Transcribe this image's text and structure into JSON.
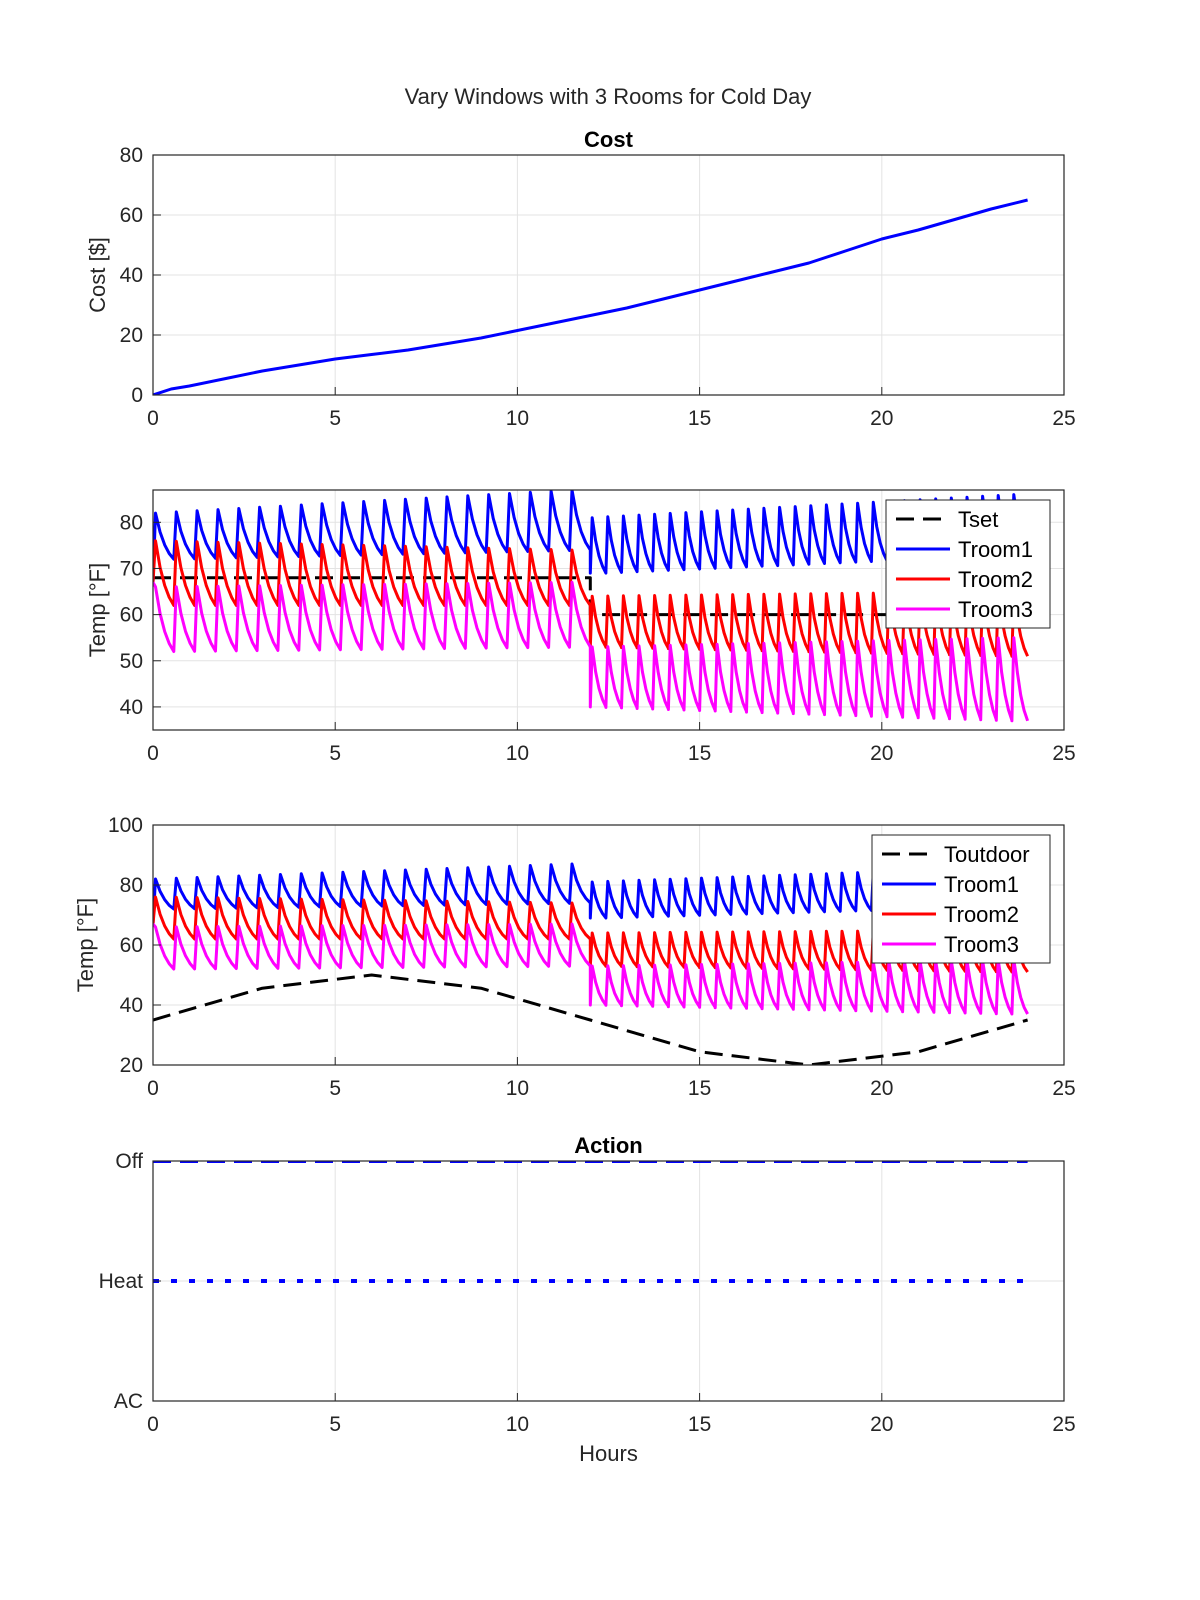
{
  "figure": {
    "suptitle": "Vary Windows with 3 Rooms for Cold Day",
    "colors": {
      "Tset": "#000000",
      "Toutdoor": "#000000",
      "Troom1": "#0000ff",
      "Troom2": "#ff0000",
      "Troom3": "#ff00ff",
      "cost": "#0000ff",
      "action": "#0000ff"
    }
  },
  "chart_data": [
    {
      "type": "line",
      "title": "Cost",
      "xlabel": "",
      "ylabel": "Cost [$]",
      "xlim": [
        0,
        25
      ],
      "ylim": [
        0,
        80
      ],
      "xticks": [
        0,
        5,
        10,
        15,
        20,
        25
      ],
      "yticks": [
        0,
        20,
        40,
        60,
        80
      ],
      "grid": true,
      "legend": null,
      "series": [
        {
          "key": "cost",
          "style": "solid",
          "x": [
            0,
            0.5,
            1,
            2,
            3,
            4,
            5,
            6,
            7,
            8,
            9,
            10,
            11,
            12,
            13,
            14,
            15,
            16,
            17,
            18,
            19,
            20,
            21,
            22,
            23,
            24
          ],
          "y": [
            0,
            2,
            3,
            5.5,
            8,
            10,
            12,
            13.5,
            15,
            17,
            19,
            21.5,
            24,
            26.5,
            29,
            32,
            35,
            38,
            41,
            44,
            48,
            52,
            55,
            58.5,
            62,
            65
          ]
        }
      ]
    },
    {
      "type": "line",
      "title": "",
      "xlabel": "",
      "ylabel": "Temp [°F]",
      "xlim": [
        0,
        25
      ],
      "ylim": [
        35,
        87
      ],
      "xticks": [
        0,
        5,
        10,
        15,
        20,
        25
      ],
      "yticks": [
        40,
        50,
        60,
        70,
        80
      ],
      "grid": true,
      "legend": {
        "placement": "top-right",
        "entries": [
          "Tset",
          "Troom1",
          "Troom2",
          "Troom3"
        ]
      },
      "series": [
        {
          "name": "Tset",
          "style": "dashed",
          "x": [
            0,
            12,
            12,
            24
          ],
          "y": [
            68,
            68,
            60,
            60
          ]
        },
        {
          "name": "Troom1",
          "style": "sawtooth",
          "x": [
            0,
            12,
            12,
            24
          ],
          "lo": [
            72,
            74,
            69,
            73
          ],
          "hi": [
            82,
            87,
            81,
            86
          ],
          "teeth": [
            21,
            28
          ]
        },
        {
          "name": "Troom2",
          "style": "sawtooth",
          "x": [
            0,
            12,
            12,
            24
          ],
          "lo": [
            62,
            62,
            53,
            51
          ],
          "hi": [
            76,
            74,
            64,
            65
          ],
          "teeth": [
            21,
            28
          ]
        },
        {
          "name": "Troom3",
          "style": "sawtooth",
          "x": [
            0,
            12,
            12,
            24
          ],
          "lo": [
            52,
            53,
            40,
            37
          ],
          "hi": [
            66,
            67,
            53,
            55
          ],
          "teeth": [
            21,
            28
          ]
        }
      ]
    },
    {
      "type": "line",
      "title": "",
      "xlabel": "",
      "ylabel": "Temp [°F]",
      "xlim": [
        0,
        25
      ],
      "ylim": [
        20,
        100
      ],
      "xticks": [
        0,
        5,
        10,
        15,
        20,
        25
      ],
      "yticks": [
        20,
        40,
        60,
        80,
        100
      ],
      "grid": true,
      "legend": {
        "placement": "top-right",
        "entries": [
          "Toutdoor",
          "Troom1",
          "Troom2",
          "Troom3"
        ]
      },
      "series": [
        {
          "name": "Toutdoor",
          "style": "dashed",
          "x": [
            0,
            3,
            6,
            9,
            12,
            15,
            18,
            21,
            24
          ],
          "y": [
            35,
            45.6,
            50,
            45.6,
            35,
            24.4,
            20,
            24.4,
            35
          ]
        },
        {
          "name": "Troom1",
          "style": "sawtooth",
          "x": [
            0,
            12,
            12,
            24
          ],
          "lo": [
            72,
            74,
            69,
            73
          ],
          "hi": [
            82,
            87,
            81,
            86
          ],
          "teeth": [
            21,
            28
          ]
        },
        {
          "name": "Troom2",
          "style": "sawtooth",
          "x": [
            0,
            12,
            12,
            24
          ],
          "lo": [
            62,
            62,
            53,
            51
          ],
          "hi": [
            76,
            74,
            64,
            65
          ],
          "teeth": [
            21,
            28
          ]
        },
        {
          "name": "Troom3",
          "style": "sawtooth",
          "x": [
            0,
            12,
            12,
            24
          ],
          "lo": [
            52,
            53,
            40,
            37
          ],
          "hi": [
            66,
            67,
            53,
            55
          ],
          "teeth": [
            21,
            28
          ]
        }
      ]
    },
    {
      "type": "line",
      "title": "Action",
      "xlabel": "Hours",
      "ylabel": "",
      "xlim": [
        0,
        25
      ],
      "ylim": [
        0,
        2
      ],
      "xticks": [
        0,
        5,
        10,
        15,
        20,
        25
      ],
      "ytick_values": [
        0,
        1,
        2
      ],
      "ytick_labels": [
        "AC",
        "Heat",
        "Off"
      ],
      "grid": true,
      "legend": null,
      "series": [
        {
          "key": "action-off",
          "style": "dashed",
          "x": [
            0,
            24
          ],
          "y": [
            2,
            2
          ]
        },
        {
          "key": "action-heat",
          "style": "dotted",
          "x": [
            0,
            24
          ],
          "y": [
            1,
            1
          ]
        }
      ]
    }
  ]
}
